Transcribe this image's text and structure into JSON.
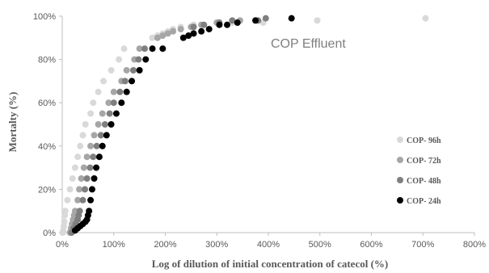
{
  "chart_data": {
    "type": "scatter",
    "title": "COP Effluent",
    "xlabel": "Log of dilution of initial concentration of catecol  (%)",
    "ylabel": "Mortalty (%)",
    "xlim": [
      0,
      800
    ],
    "ylim": [
      0,
      100
    ],
    "x_ticks": [
      "0%",
      "100%",
      "200%",
      "300%",
      "400%",
      "500%",
      "600%",
      "700%",
      "800%"
    ],
    "y_ticks": [
      "0%",
      "20%",
      "40%",
      "60%",
      "80%",
      "100%"
    ],
    "legend_position": "right",
    "series": [
      {
        "name": "COP- 96h",
        "color": "#d9d9d9",
        "points": [
          [
            1,
            0
          ],
          [
            2,
            1
          ],
          [
            3,
            3
          ],
          [
            4,
            5
          ],
          [
            5,
            8
          ],
          [
            6,
            10
          ],
          [
            10,
            15
          ],
          [
            15,
            20
          ],
          [
            20,
            25
          ],
          [
            25,
            30
          ],
          [
            30,
            35
          ],
          [
            35,
            40
          ],
          [
            40,
            45
          ],
          [
            45,
            50
          ],
          [
            55,
            55
          ],
          [
            60,
            60
          ],
          [
            70,
            65
          ],
          [
            80,
            70
          ],
          [
            95,
            75
          ],
          [
            110,
            80
          ],
          [
            120,
            85
          ],
          [
            175,
            90
          ],
          [
            185,
            91
          ],
          [
            195,
            92
          ],
          [
            205,
            93
          ],
          [
            215,
            94
          ],
          [
            230,
            95
          ],
          [
            255,
            96
          ],
          [
            330,
            97
          ],
          [
            390,
            97
          ],
          [
            495,
            98
          ],
          [
            705,
            99
          ]
        ]
      },
      {
        "name": "COP- 72h",
        "color": "#a6a6a6",
        "points": [
          [
            15,
            0
          ],
          [
            17,
            2
          ],
          [
            19,
            4
          ],
          [
            21,
            6
          ],
          [
            23,
            8
          ],
          [
            25,
            10
          ],
          [
            30,
            15
          ],
          [
            33,
            20
          ],
          [
            37,
            25
          ],
          [
            42,
            30
          ],
          [
            48,
            35
          ],
          [
            55,
            40
          ],
          [
            62,
            45
          ],
          [
            70,
            50
          ],
          [
            78,
            55
          ],
          [
            90,
            60
          ],
          [
            100,
            65
          ],
          [
            115,
            70
          ],
          [
            125,
            75
          ],
          [
            140,
            80
          ],
          [
            150,
            85
          ],
          [
            185,
            90
          ],
          [
            195,
            91
          ],
          [
            205,
            92
          ],
          [
            215,
            93
          ],
          [
            230,
            94
          ],
          [
            250,
            95
          ],
          [
            270,
            96
          ],
          [
            300,
            97
          ],
          [
            345,
            98
          ]
        ]
      },
      {
        "name": "COP- 48h",
        "color": "#7f7f7f",
        "points": [
          [
            18,
            0
          ],
          [
            22,
            2
          ],
          [
            26,
            4
          ],
          [
            30,
            6
          ],
          [
            32,
            8
          ],
          [
            34,
            10
          ],
          [
            40,
            15
          ],
          [
            44,
            20
          ],
          [
            48,
            25
          ],
          [
            54,
            30
          ],
          [
            60,
            35
          ],
          [
            67,
            40
          ],
          [
            75,
            45
          ],
          [
            83,
            50
          ],
          [
            92,
            55
          ],
          [
            100,
            60
          ],
          [
            112,
            65
          ],
          [
            122,
            70
          ],
          [
            138,
            75
          ],
          [
            148,
            80
          ],
          [
            160,
            85
          ],
          [
            255,
            95
          ],
          [
            275,
            96
          ],
          [
            305,
            97
          ],
          [
            330,
            98
          ],
          [
            380,
            98
          ],
          [
            395,
            99
          ]
        ]
      },
      {
        "name": "COP- 24h",
        "color": "#000000",
        "points": [
          [
            25,
            1
          ],
          [
            30,
            2
          ],
          [
            35,
            3
          ],
          [
            40,
            4
          ],
          [
            45,
            5
          ],
          [
            48,
            6
          ],
          [
            50,
            8
          ],
          [
            52,
            10
          ],
          [
            55,
            15
          ],
          [
            58,
            20
          ],
          [
            62,
            25
          ],
          [
            66,
            30
          ],
          [
            72,
            35
          ],
          [
            78,
            40
          ],
          [
            86,
            45
          ],
          [
            95,
            50
          ],
          [
            105,
            55
          ],
          [
            115,
            60
          ],
          [
            125,
            65
          ],
          [
            135,
            70
          ],
          [
            150,
            75
          ],
          [
            162,
            80
          ],
          [
            175,
            85
          ],
          [
            195,
            85
          ],
          [
            235,
            90
          ],
          [
            245,
            91
          ],
          [
            255,
            92
          ],
          [
            270,
            93
          ],
          [
            285,
            94
          ],
          [
            305,
            96
          ],
          [
            320,
            96
          ],
          [
            340,
            97
          ],
          [
            375,
            98
          ],
          [
            445,
            99
          ]
        ]
      }
    ]
  }
}
